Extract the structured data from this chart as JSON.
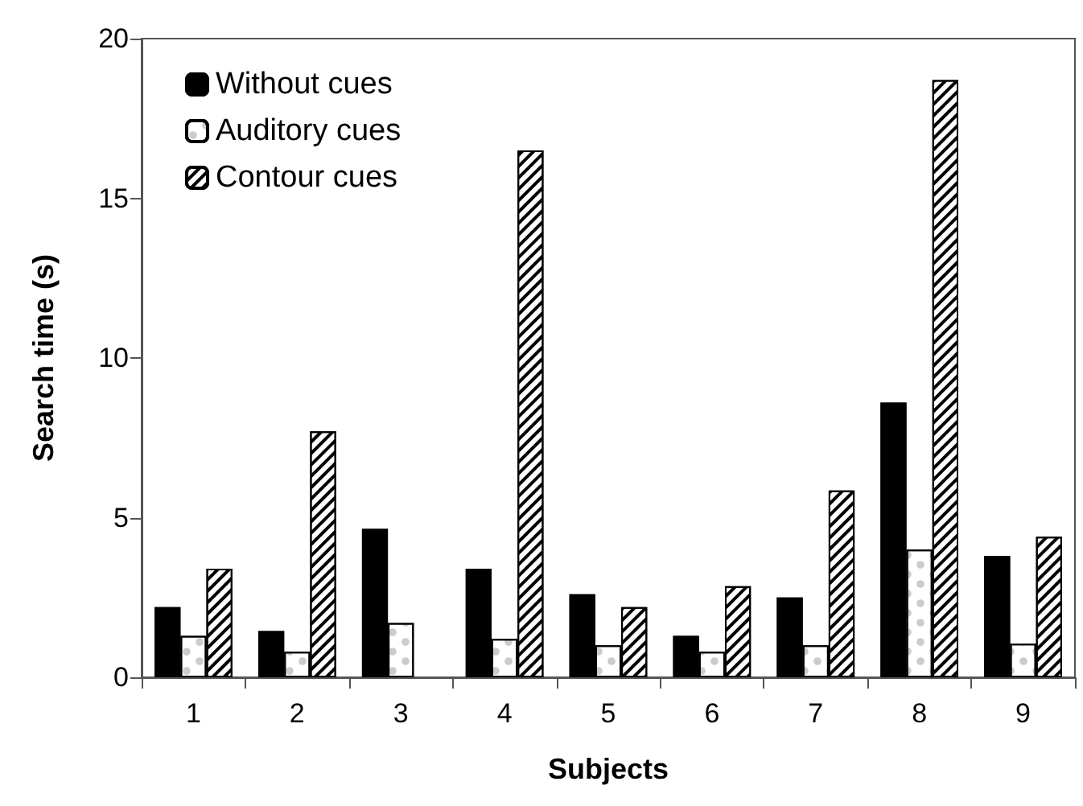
{
  "chart_data": {
    "type": "bar",
    "xlabel": "Subjects",
    "ylabel": "Search time (s)",
    "categories": [
      "1",
      "2",
      "3",
      "4",
      "5",
      "6",
      "7",
      "8",
      "9"
    ],
    "series": [
      {
        "name": "Without cues",
        "color": "#000000",
        "values": [
          2.2,
          1.45,
          4.65,
          3.4,
          2.6,
          1.3,
          2.5,
          8.6,
          3.8
        ]
      },
      {
        "name": "Auditory cues",
        "color": "#ffffff",
        "values": [
          1.3,
          0.8,
          1.7,
          1.2,
          1.0,
          0.8,
          1.0,
          4.0,
          1.05
        ]
      },
      {
        "name": "Contour cues",
        "color": "#ffffff",
        "values": [
          3.4,
          7.7,
          null,
          16.5,
          2.2,
          2.85,
          5.85,
          18.7,
          4.4
        ]
      }
    ],
    "ylim": [
      0,
      20
    ],
    "yticks": [
      0,
      5,
      10,
      15,
      20
    ],
    "grid": false,
    "legend": "top left"
  }
}
